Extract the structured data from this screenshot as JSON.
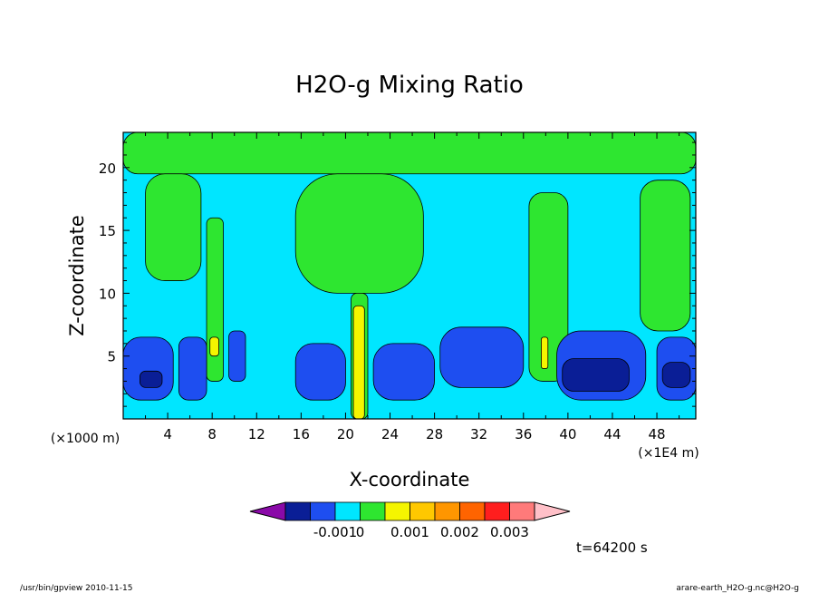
{
  "chart_data": {
    "type": "heatmap",
    "title": "H2O-g Mixing Ratio",
    "xlabel": "X-coordinate",
    "ylabel": "Z-coordinate",
    "x_unit_left": "(×1000 m)",
    "x_unit_right": "(×1E4 m)",
    "xlim": [
      0,
      51.5
    ],
    "ylim": [
      0,
      22.8
    ],
    "x_ticks": [
      4,
      8,
      12,
      16,
      20,
      24,
      28,
      32,
      36,
      40,
      44,
      48
    ],
    "y_ticks": [
      5,
      10,
      15,
      20
    ],
    "colorbar": {
      "levels": [
        "-0.001",
        "0",
        "0.001",
        "0.002",
        "0.003"
      ],
      "colors": [
        "#8a0aa8",
        "#0a1e96",
        "#1e4ef0",
        "#00e6ff",
        "#2ee630",
        "#f5f500",
        "#ffc800",
        "#ff9600",
        "#ff6400",
        "#ff1e1e",
        "#ff7a7a",
        "#ffc0c8"
      ]
    },
    "regions": [
      {
        "level": "cyan",
        "x": [
          0,
          51.5
        ],
        "y": [
          0,
          22.8
        ]
      },
      {
        "level": "green",
        "x": [
          0,
          51.5
        ],
        "y": [
          19.5,
          22.8
        ]
      },
      {
        "level": "green",
        "x": [
          15.5,
          27
        ],
        "y": [
          10,
          19.5
        ]
      },
      {
        "level": "green",
        "x": [
          20.5,
          22
        ],
        "y": [
          0,
          10
        ]
      },
      {
        "level": "green",
        "x": [
          2,
          7
        ],
        "y": [
          11,
          19.5
        ]
      },
      {
        "level": "green",
        "x": [
          7.5,
          9
        ],
        "y": [
          3,
          16
        ]
      },
      {
        "level": "green",
        "x": [
          36.5,
          40
        ],
        "y": [
          3,
          18
        ]
      },
      {
        "level": "green",
        "x": [
          46.5,
          51
        ],
        "y": [
          7,
          19
        ]
      },
      {
        "level": "blue",
        "x": [
          0,
          4.5
        ],
        "y": [
          1.5,
          6.5
        ]
      },
      {
        "level": "blue",
        "x": [
          5,
          7.5
        ],
        "y": [
          1.5,
          6.5
        ]
      },
      {
        "level": "blue",
        "x": [
          9.5,
          11
        ],
        "y": [
          3,
          7
        ]
      },
      {
        "level": "blue",
        "x": [
          15.5,
          20
        ],
        "y": [
          1.5,
          6
        ]
      },
      {
        "level": "blue",
        "x": [
          22.5,
          28
        ],
        "y": [
          1.5,
          6
        ]
      },
      {
        "level": "blue",
        "x": [
          28.5,
          36
        ],
        "y": [
          2.5,
          7.3
        ]
      },
      {
        "level": "blue",
        "x": [
          39,
          47
        ],
        "y": [
          1.5,
          7
        ]
      },
      {
        "level": "blue",
        "x": [
          48,
          51.5
        ],
        "y": [
          1.5,
          6.5
        ]
      },
      {
        "level": "navy",
        "x": [
          1.5,
          3.5
        ],
        "y": [
          2.5,
          3.8
        ]
      },
      {
        "level": "navy",
        "x": [
          39.5,
          45.5
        ],
        "y": [
          2.2,
          4.8
        ]
      },
      {
        "level": "navy",
        "x": [
          48.5,
          51
        ],
        "y": [
          2.5,
          4.5
        ]
      },
      {
        "level": "yellow",
        "x": [
          7.8,
          8.6
        ],
        "y": [
          5,
          6.5
        ]
      },
      {
        "level": "yellow",
        "x": [
          20.7,
          21.7
        ],
        "y": [
          0,
          9
        ]
      },
      {
        "level": "yellow",
        "x": [
          37.6,
          38.2
        ],
        "y": [
          4,
          6.5
        ]
      }
    ]
  },
  "annotations": {
    "time": "t=64200 s",
    "program": "/usr/bin/gpview  2010-11-15",
    "source": "arare-earth_H2O-g.nc@H2O-g"
  }
}
